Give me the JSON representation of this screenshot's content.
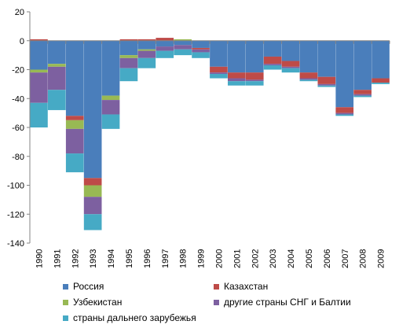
{
  "chart_data": {
    "type": "bar",
    "stacked": true,
    "title": "",
    "xlabel": "",
    "ylabel": "",
    "ylim": [
      -140,
      20
    ],
    "yticks": [
      20,
      0,
      -20,
      -40,
      -60,
      -80,
      -100,
      -120,
      -140
    ],
    "grid": false,
    "legend_position": "bottom",
    "categories": [
      "1990",
      "1991",
      "1992",
      "1993",
      "1994",
      "1995",
      "1996",
      "1997",
      "1998",
      "1999",
      "2000",
      "2001",
      "2002",
      "2003",
      "2004",
      "2005",
      "2006",
      "2007",
      "2008",
      "2009"
    ],
    "series": [
      {
        "name": "Россия",
        "color": "#4a7ebb",
        "values": [
          -20,
          -16,
          -52,
          -95,
          -38,
          -10,
          -6,
          -4,
          -3,
          -5,
          -18,
          -22,
          -22,
          -11,
          -14,
          -22,
          -25,
          -46,
          -34,
          -26
        ]
      },
      {
        "name": "Казахстан",
        "color": "#be4b48",
        "values": [
          1,
          0,
          -3,
          -5,
          0,
          1,
          1,
          2,
          0,
          -1,
          -4,
          -4,
          -5,
          -5,
          -4,
          -4,
          -5,
          -4,
          -3,
          -3
        ]
      },
      {
        "name": "Узбекистан",
        "color": "#98b954",
        "values": [
          -2,
          -2,
          -6,
          -8,
          -3,
          -2,
          -1,
          0,
          1,
          0,
          0,
          0,
          0,
          0,
          0,
          0,
          0,
          0,
          0,
          0
        ]
      },
      {
        "name": "другие страны СНГ и Балтии",
        "color": "#7d60a0",
        "values": [
          -21,
          -16,
          -17,
          -12,
          -10,
          -7,
          -5,
          -3,
          -3,
          -2,
          -1,
          -2,
          -1,
          -1,
          -1,
          -1,
          -1,
          -1,
          -1,
          0
        ]
      },
      {
        "name": "страны дальнего зарубежья",
        "color": "#46aac5",
        "values": [
          -17,
          -14,
          -13,
          -11,
          -10,
          -9,
          -7,
          -5,
          -4,
          -4,
          -3,
          -3,
          -3,
          -3,
          -3,
          -1,
          -1,
          -1,
          -1,
          -1
        ]
      }
    ]
  }
}
